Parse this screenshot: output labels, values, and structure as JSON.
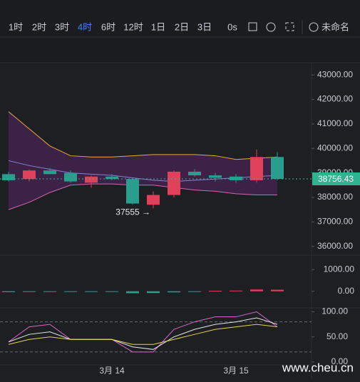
{
  "toolbar": {
    "intervals": [
      "1时",
      "2时",
      "3时",
      "4时",
      "6时",
      "12时",
      "1日",
      "2日",
      "3日"
    ],
    "active": 3,
    "replay": "0s",
    "layout_name": "未命名"
  },
  "chart_data": {
    "type": "candlestick",
    "categories": [
      null,
      null,
      null,
      null,
      null,
      "3月 14",
      null,
      null,
      null,
      null,
      null,
      "3月 15",
      null,
      null
    ],
    "open": [
      38950,
      38750,
      39100,
      39000,
      38600,
      38850,
      38750,
      37700,
      38100,
      39050,
      38900,
      38850,
      38700,
      39650
    ],
    "high": [
      39050,
      39150,
      39200,
      39100,
      38900,
      38950,
      38800,
      38250,
      39100,
      39150,
      39000,
      38950,
      39950,
      39850
    ],
    "low": [
      38650,
      38650,
      38950,
      38600,
      38400,
      38700,
      37700,
      37555,
      38000,
      38850,
      38650,
      38600,
      38600,
      38700
    ],
    "close": [
      38700,
      39100,
      38950,
      38650,
      38850,
      38750,
      37750,
      38100,
      39050,
      38900,
      38800,
      38700,
      39650,
      38756.43
    ],
    "up_color": "#e0405a",
    "down_color": "#2a9d8f",
    "ylim": [
      35700,
      43500
    ],
    "yticks": [
      {
        "value": 43000,
        "label": "43000.00"
      },
      {
        "value": 42000,
        "label": "42000.00"
      },
      {
        "value": 41000,
        "label": "41000.00"
      },
      {
        "value": 40000,
        "label": "40000.00"
      },
      {
        "value": 39000,
        "label": "39000.00"
      },
      {
        "value": 38000,
        "label": "38000.00"
      },
      {
        "value": 37000,
        "label": "37000.00"
      },
      {
        "value": 36000,
        "label": "36000.00"
      }
    ],
    "last_price": {
      "value": 38756.43,
      "label": "38756.43"
    },
    "annotation": "37555 →",
    "bands": {
      "upper": [
        41500,
        40800,
        40100,
        39700,
        39650,
        39650,
        39700,
        39750,
        39750,
        39750,
        39700,
        39550,
        39600,
        39650
      ],
      "middle": [
        39500,
        39300,
        39150,
        39000,
        38950,
        38900,
        38800,
        38700,
        38650,
        38700,
        38750,
        38800,
        38850,
        38900
      ],
      "lower": [
        37500,
        37800,
        38200,
        38500,
        38550,
        38550,
        38500,
        38500,
        38400,
        38300,
        38250,
        38150,
        38100,
        38100
      ]
    },
    "histogram": {
      "values": [
        -40,
        -30,
        -20,
        -30,
        -20,
        -10,
        -90,
        -80,
        -50,
        -20,
        20,
        30,
        80,
        70
      ],
      "ylim": [
        -700,
        1600
      ],
      "yticks": [
        {
          "value": 1000,
          "label": "1000.00"
        },
        {
          "value": 0,
          "label": "0.00"
        }
      ]
    },
    "oscillator": {
      "ylim": [
        -3,
        105
      ],
      "yticks": [
        {
          "value": 100,
          "label": "100.00"
        },
        {
          "value": 50,
          "label": "50.00"
        },
        {
          "value": 0,
          "label": "0.00"
        }
      ],
      "levels": [
        80,
        20
      ],
      "series": [
        {
          "color": "#d966c6",
          "values": [
            40,
            70,
            75,
            45,
            45,
            45,
            20,
            20,
            65,
            80,
            90,
            90,
            100,
            70
          ]
        },
        {
          "color": "#e6e6e6",
          "values": [
            40,
            55,
            60,
            45,
            45,
            45,
            30,
            25,
            50,
            65,
            75,
            80,
            88,
            75
          ]
        },
        {
          "color": "#e5d44a",
          "values": [
            35,
            45,
            50,
            45,
            45,
            45,
            35,
            35,
            45,
            55,
            65,
            70,
            75,
            70
          ]
        }
      ]
    },
    "watermark": "www.cheu.cn"
  }
}
